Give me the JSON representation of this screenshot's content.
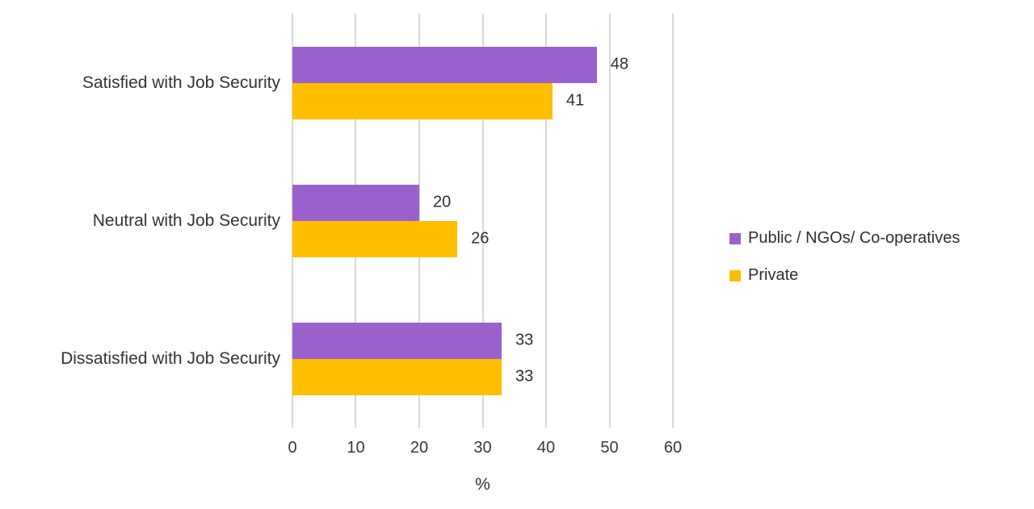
{
  "chart_data": {
    "type": "bar",
    "orientation": "horizontal",
    "categories": [
      "Satisfied with Job Security",
      "Neutral with Job Security",
      "Dissatisfied with Job Security"
    ],
    "series": [
      {
        "name": "Public / NGOs/ Co-operatives",
        "color": "#9A61CD",
        "values": [
          48,
          20,
          33
        ]
      },
      {
        "name": "Private",
        "color": "#FFBE00",
        "values": [
          41,
          26,
          33
        ]
      }
    ],
    "data_labels": [
      [
        "48",
        "41"
      ],
      [
        "20",
        "26"
      ],
      [
        "33",
        "33"
      ]
    ],
    "title": "",
    "xlabel": "%",
    "ylabel": "",
    "xlim": [
      0,
      60
    ],
    "xticks": [
      "0",
      "10",
      "20",
      "30",
      "40",
      "50",
      "60"
    ],
    "grid": true,
    "legend_position": "right"
  },
  "colors": {
    "gridline": "#D8D8D8",
    "text": "#333333",
    "background": "#FFFFFF"
  }
}
